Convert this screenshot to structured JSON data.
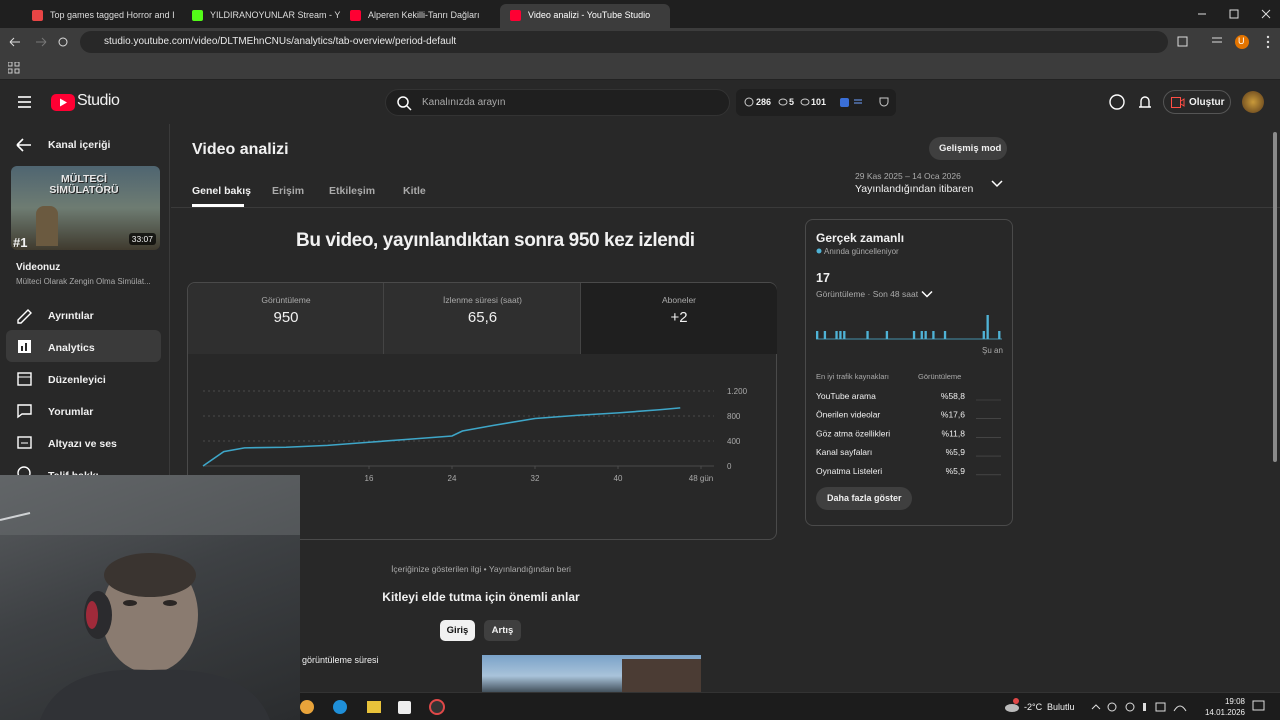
{
  "browser": {
    "tabs": [
      "Top games tagged Horror and I",
      "YILDIRANOYUNLAR Stream - Y",
      "Alperen Kekilli-Tanrı Dağları",
      "Video analizi - YouTube Studio"
    ],
    "url": "studio.youtube.com/video/DLTMEhnCNUs/analytics/tab-overview/period-default",
    "profile": "U"
  },
  "header": {
    "logo": "Studio",
    "search_placeholder": "Kanalınızda arayın",
    "stats": [
      "286",
      "5",
      "101"
    ],
    "create": "Oluştur"
  },
  "sidebar": {
    "back": "Kanal içeriği",
    "thumbnail_title": "MÜLTECİ SİMÜLATÖRÜ",
    "rank": "#1",
    "duration": "33:07",
    "video_label": "Videonuz",
    "video_title": "Mülteci Olarak Zengin Olma Simülat...",
    "menu": [
      "Ayrıntılar",
      "Analytics",
      "Düzenleyici",
      "Yorumlar",
      "Altyazı ve ses",
      "Telif hakkı"
    ]
  },
  "main": {
    "title": "Video analizi",
    "tabs": [
      "Genel bakış",
      "Erişim",
      "Etkileşim",
      "Kitle"
    ],
    "advanced": "Gelişmiş mod",
    "date_range": "29 Kas 2025 – 14 Oca 2026",
    "period": "Yayınlandığından itibaren",
    "headline": "Bu video, yayınlandıktan sonra 950 kez izlendi",
    "metrics": [
      {
        "label": "Görüntüleme",
        "value": "950"
      },
      {
        "label": "İzlenme süresi (saat)",
        "value": "65,6"
      },
      {
        "label": "Aboneler",
        "value": "+2"
      }
    ],
    "chart": {
      "type": "line",
      "x": [
        0,
        2,
        4,
        8,
        12,
        16,
        20,
        24,
        25,
        28,
        32,
        36,
        40,
        44,
        46
      ],
      "values": [
        0,
        230,
        290,
        300,
        330,
        380,
        430,
        480,
        560,
        650,
        760,
        810,
        850,
        900,
        930
      ],
      "xlim": [
        0,
        48
      ],
      "xticks": [
        16,
        24,
        32,
        40,
        {
          "value": 48,
          "label": "48 gün"
        }
      ],
      "ylim": [
        0,
        1200
      ],
      "yticks": [
        0,
        400,
        800,
        {
          "value": 1200,
          "label": "1.200"
        }
      ],
      "color": "#3ea6c8",
      "grid": true
    },
    "interest": "İçeriğinize gösterilen ilgi • Yayınlandığından beri",
    "moments_title": "Kitleyi elde tutma için önemli anlar",
    "moment_tabs": [
      "Giriş",
      "Artış"
    ],
    "watch_time_label": "görüntüleme süresi"
  },
  "realtime": {
    "title": "Gerçek zamanlı",
    "status": "Anında güncelleniyor",
    "count": 17,
    "views_label": "Görüntüleme · Son 48 saat",
    "bars": [
      1,
      0,
      1,
      0,
      0,
      1,
      1,
      1,
      0,
      0,
      0,
      0,
      0,
      1,
      0,
      0,
      0,
      0,
      1,
      0,
      0,
      0,
      0,
      0,
      0,
      1,
      0,
      1,
      1,
      0,
      1,
      0,
      0,
      1,
      0,
      0,
      0,
      0,
      0,
      0,
      0,
      0,
      0,
      1,
      3,
      0,
      0,
      1
    ],
    "color": "#4fb3d6",
    "now": "Şu an",
    "sources_header": "En iyi trafik kaynakları",
    "views_header": "Görüntüleme",
    "sources": [
      {
        "name": "YouTube arama",
        "share": "%58,8"
      },
      {
        "name": "Önerilen videolar",
        "share": "%17,6"
      },
      {
        "name": "Göz atma özellikleri",
        "share": "%11,8"
      },
      {
        "name": "Kanal sayfaları",
        "share": "%5,9"
      },
      {
        "name": "Oynatma Listeleri",
        "share": "%5,9"
      }
    ],
    "more": "Daha fazla göster"
  },
  "taskbar": {
    "temperature": "-2°C",
    "weather": "Bulutlu",
    "time": "19:08",
    "date": "14.01.2026"
  }
}
